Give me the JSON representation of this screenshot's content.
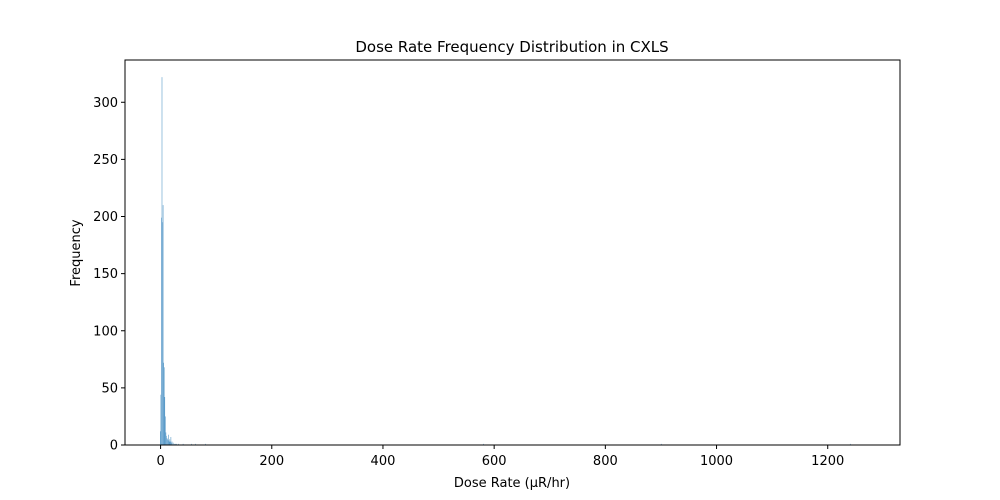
{
  "chart_data": {
    "type": "bar",
    "title": "Dose Rate Frequency Distribution in CXLS",
    "xlabel": "Dose Rate (μR/hr)",
    "ylabel": "Frequency",
    "xlim": [
      -64,
      1330
    ],
    "ylim": [
      0,
      337
    ],
    "xticks": [
      0,
      200,
      400,
      600,
      800,
      1000,
      1200
    ],
    "yticks": [
      0,
      50,
      100,
      150,
      200,
      250,
      300
    ],
    "bin_width": 1,
    "grid": false,
    "bar_color": "#5b9bc9",
    "bins": [
      {
        "x": -1,
        "value": 12
      },
      {
        "x": 0,
        "value": 44
      },
      {
        "x": 1,
        "value": 199
      },
      {
        "x": 2,
        "value": 322
      },
      {
        "x": 3,
        "value": 195
      },
      {
        "x": 4,
        "value": 210
      },
      {
        "x": 5,
        "value": 72
      },
      {
        "x": 6,
        "value": 68
      },
      {
        "x": 7,
        "value": 42
      },
      {
        "x": 8,
        "value": 25
      },
      {
        "x": 9,
        "value": 11
      },
      {
        "x": 10,
        "value": 8
      },
      {
        "x": 11,
        "value": 6
      },
      {
        "x": 12,
        "value": 5
      },
      {
        "x": 13,
        "value": 4
      },
      {
        "x": 14,
        "value": 9
      },
      {
        "x": 15,
        "value": 3
      },
      {
        "x": 16,
        "value": 5
      },
      {
        "x": 17,
        "value": 3
      },
      {
        "x": 18,
        "value": 7
      },
      {
        "x": 19,
        "value": 2
      },
      {
        "x": 20,
        "value": 3
      },
      {
        "x": 22,
        "value": 2
      },
      {
        "x": 24,
        "value": 1
      },
      {
        "x": 26,
        "value": 1
      },
      {
        "x": 28,
        "value": 1
      },
      {
        "x": 32,
        "value": 1
      },
      {
        "x": 40,
        "value": 1
      },
      {
        "x": 55,
        "value": 1
      },
      {
        "x": 62,
        "value": 1
      },
      {
        "x": 80,
        "value": 1
      },
      {
        "x": 580,
        "value": 1
      },
      {
        "x": 900,
        "value": 1
      },
      {
        "x": 1240,
        "value": 1
      }
    ]
  }
}
